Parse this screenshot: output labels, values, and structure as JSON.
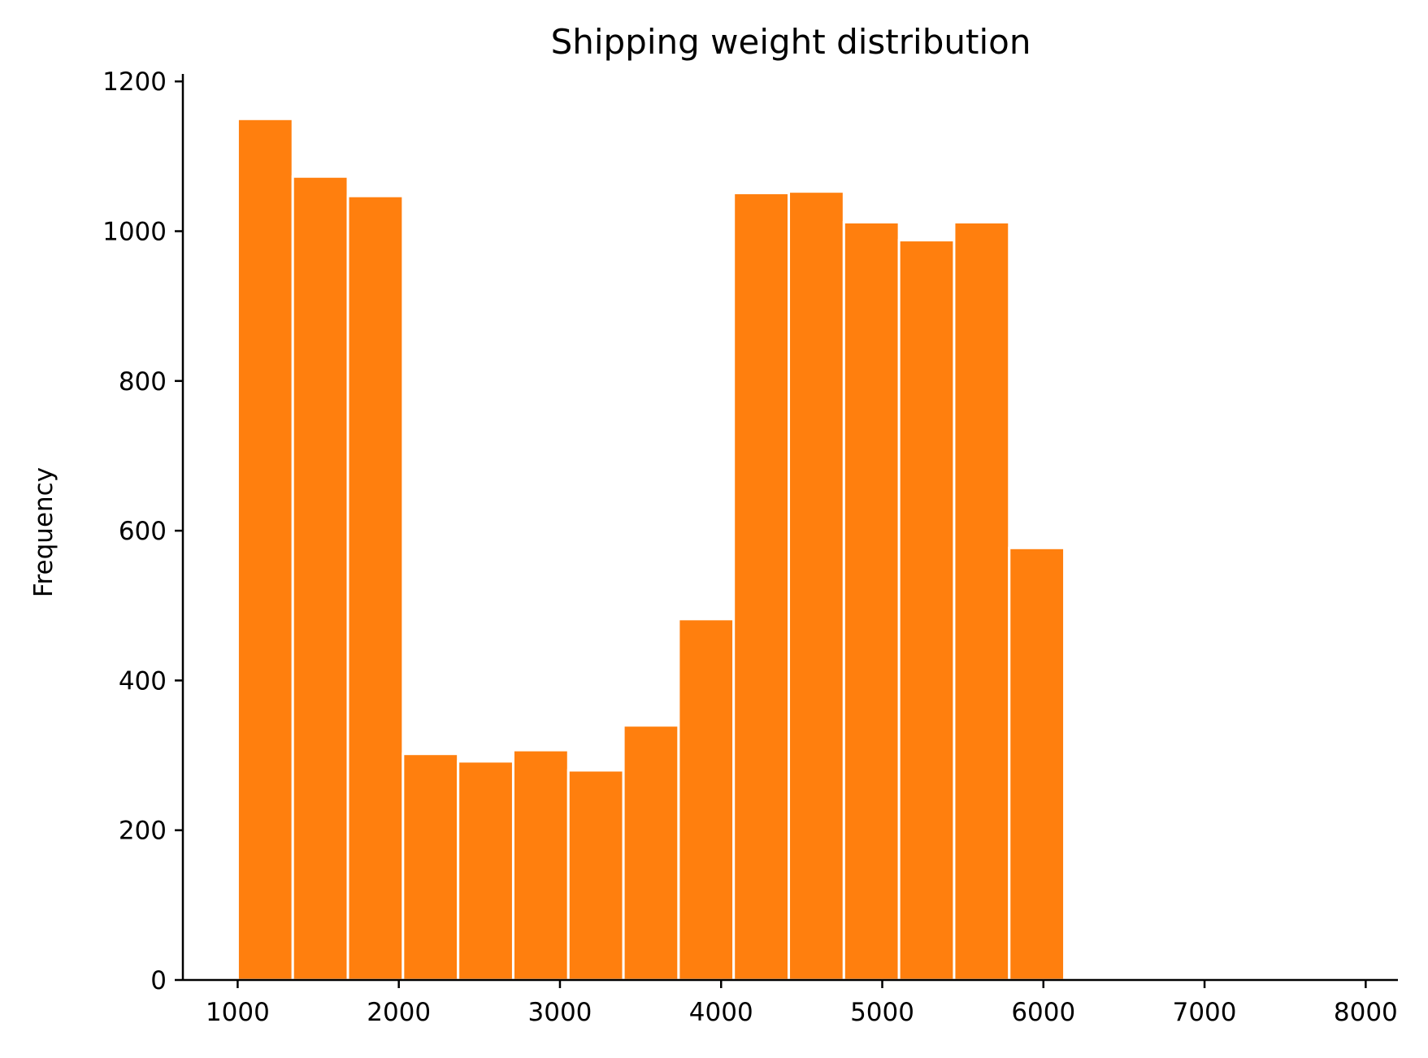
{
  "chart_data": {
    "type": "bar",
    "subtype": "histogram",
    "title": "Shipping weight distribution",
    "xlabel": "",
    "ylabel": "Frequency",
    "bin_edges": [
      1000,
      1342,
      1684,
      2026,
      2368,
      2710,
      3052,
      3394,
      3736,
      4078,
      4420,
      4762,
      5104,
      5446,
      5788,
      6130
    ],
    "values": [
      1150,
      1073,
      1047,
      302,
      292,
      307,
      280,
      340,
      482,
      1051,
      1053,
      1012,
      988,
      1012,
      577
    ],
    "xlim": [
      660,
      8200
    ],
    "ylim": [
      0,
      1210
    ],
    "xticks": [
      1000,
      2000,
      3000,
      4000,
      5000,
      6000,
      7000,
      8000
    ],
    "yticks": [
      0,
      200,
      400,
      600,
      800,
      1000,
      1200
    ],
    "bar_color": "#ff7f0e",
    "grid": false,
    "legend": "none"
  }
}
